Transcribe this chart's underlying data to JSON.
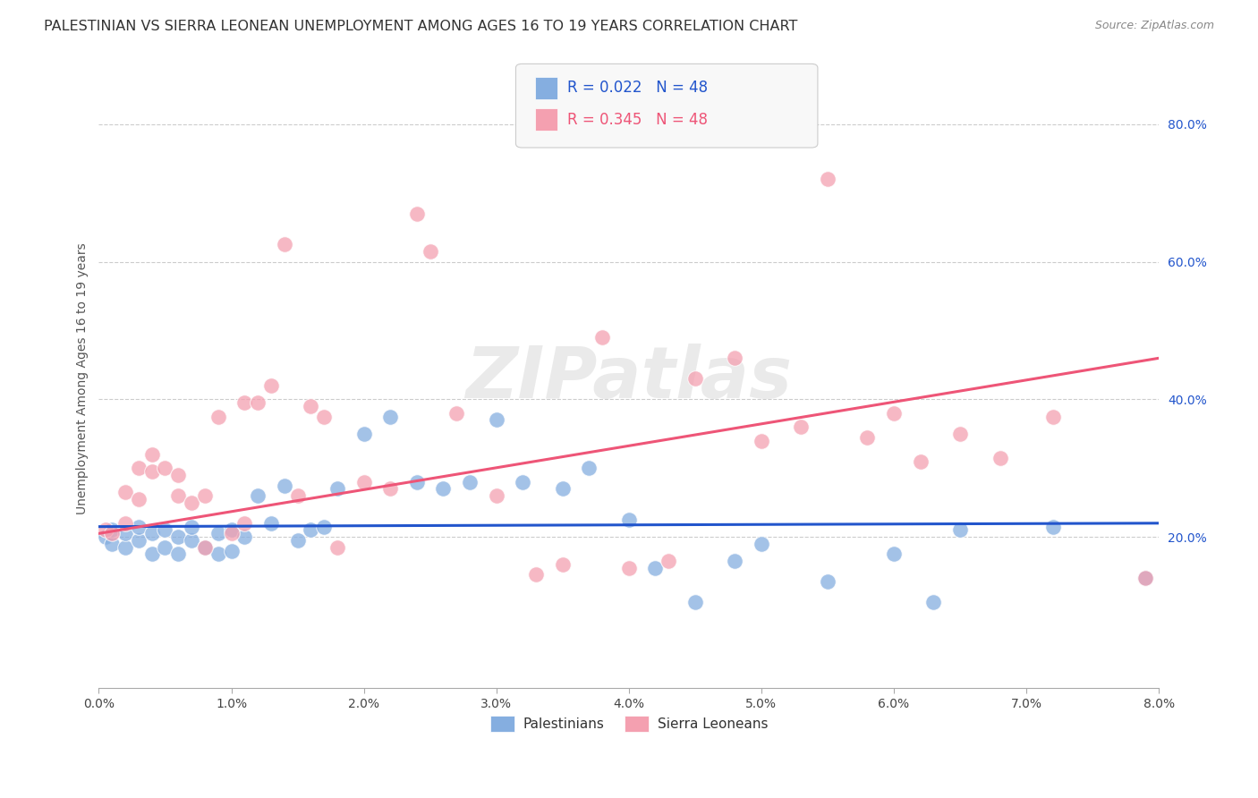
{
  "title": "PALESTINIAN VS SIERRA LEONEAN UNEMPLOYMENT AMONG AGES 16 TO 19 YEARS CORRELATION CHART",
  "source": "Source: ZipAtlas.com",
  "ylabel": "Unemployment Among Ages 16 to 19 years",
  "xlim": [
    0.0,
    0.08
  ],
  "ylim": [
    -0.02,
    0.88
  ],
  "xticks": [
    0.0,
    0.01,
    0.02,
    0.03,
    0.04,
    0.05,
    0.06,
    0.07,
    0.08
  ],
  "xticklabels": [
    "0.0%",
    "1.0%",
    "2.0%",
    "3.0%",
    "4.0%",
    "5.0%",
    "6.0%",
    "7.0%",
    "8.0%"
  ],
  "ytick_positions": [
    0.2,
    0.4,
    0.6,
    0.8
  ],
  "yticklabels": [
    "20.0%",
    "40.0%",
    "60.0%",
    "80.0%"
  ],
  "grid_color": "#cccccc",
  "watermark": "ZIPatlas",
  "blue_color": "#85aee0",
  "pink_color": "#f4a0b0",
  "blue_line_color": "#2255cc",
  "pink_line_color": "#ee5577",
  "R_blue": 0.022,
  "R_pink": 0.345,
  "N": 48,
  "blue_scatter_x": [
    0.0005,
    0.001,
    0.001,
    0.002,
    0.002,
    0.003,
    0.003,
    0.004,
    0.004,
    0.005,
    0.005,
    0.006,
    0.006,
    0.007,
    0.007,
    0.008,
    0.009,
    0.009,
    0.01,
    0.01,
    0.011,
    0.012,
    0.013,
    0.014,
    0.015,
    0.016,
    0.017,
    0.018,
    0.02,
    0.022,
    0.024,
    0.026,
    0.028,
    0.03,
    0.032,
    0.035,
    0.037,
    0.04,
    0.042,
    0.045,
    0.048,
    0.05,
    0.055,
    0.06,
    0.063,
    0.065,
    0.072,
    0.079
  ],
  "blue_scatter_y": [
    0.2,
    0.19,
    0.21,
    0.185,
    0.205,
    0.195,
    0.215,
    0.175,
    0.205,
    0.185,
    0.21,
    0.175,
    0.2,
    0.195,
    0.215,
    0.185,
    0.175,
    0.205,
    0.18,
    0.21,
    0.2,
    0.26,
    0.22,
    0.275,
    0.195,
    0.21,
    0.215,
    0.27,
    0.35,
    0.375,
    0.28,
    0.27,
    0.28,
    0.37,
    0.28,
    0.27,
    0.3,
    0.225,
    0.155,
    0.105,
    0.165,
    0.19,
    0.135,
    0.175,
    0.105,
    0.21,
    0.215,
    0.14
  ],
  "pink_scatter_x": [
    0.0005,
    0.001,
    0.002,
    0.002,
    0.003,
    0.003,
    0.004,
    0.004,
    0.005,
    0.006,
    0.006,
    0.007,
    0.008,
    0.008,
    0.009,
    0.01,
    0.011,
    0.011,
    0.012,
    0.013,
    0.014,
    0.015,
    0.016,
    0.017,
    0.018,
    0.02,
    0.022,
    0.024,
    0.025,
    0.027,
    0.03,
    0.033,
    0.035,
    0.038,
    0.04,
    0.043,
    0.045,
    0.048,
    0.05,
    0.053,
    0.055,
    0.058,
    0.06,
    0.062,
    0.065,
    0.068,
    0.072,
    0.079
  ],
  "pink_scatter_y": [
    0.21,
    0.205,
    0.265,
    0.22,
    0.3,
    0.255,
    0.295,
    0.32,
    0.3,
    0.29,
    0.26,
    0.25,
    0.26,
    0.185,
    0.375,
    0.205,
    0.22,
    0.395,
    0.395,
    0.42,
    0.625,
    0.26,
    0.39,
    0.375,
    0.185,
    0.28,
    0.27,
    0.67,
    0.615,
    0.38,
    0.26,
    0.145,
    0.16,
    0.49,
    0.155,
    0.165,
    0.43,
    0.46,
    0.34,
    0.36,
    0.72,
    0.345,
    0.38,
    0.31,
    0.35,
    0.315,
    0.375,
    0.14
  ],
  "background_color": "#ffffff",
  "title_fontsize": 11.5,
  "axis_label_fontsize": 10,
  "tick_fontsize": 10,
  "legend_fontsize": 12
}
